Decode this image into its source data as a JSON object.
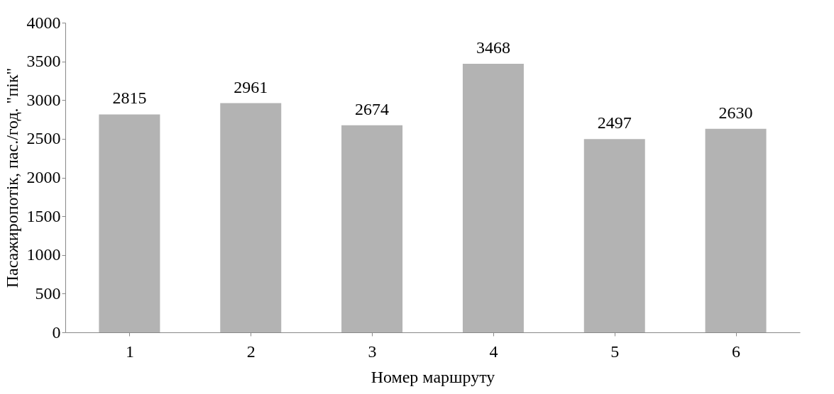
{
  "chart_data": {
    "type": "bar",
    "xlabel": "Номер маршруту",
    "ylabel": "Пасажиропотік, пас./год. \"пік\"",
    "categories": [
      "1",
      "2",
      "3",
      "4",
      "5",
      "6"
    ],
    "values": [
      2815,
      2961,
      2674,
      3468,
      2497,
      2630
    ],
    "color": "#b3b3b3",
    "ylim": [
      0,
      4000
    ],
    "yticks": [
      0,
      500,
      1000,
      1500,
      2000,
      2500,
      3000,
      3500,
      4000
    ],
    "grid": false,
    "data_labels": true
  }
}
